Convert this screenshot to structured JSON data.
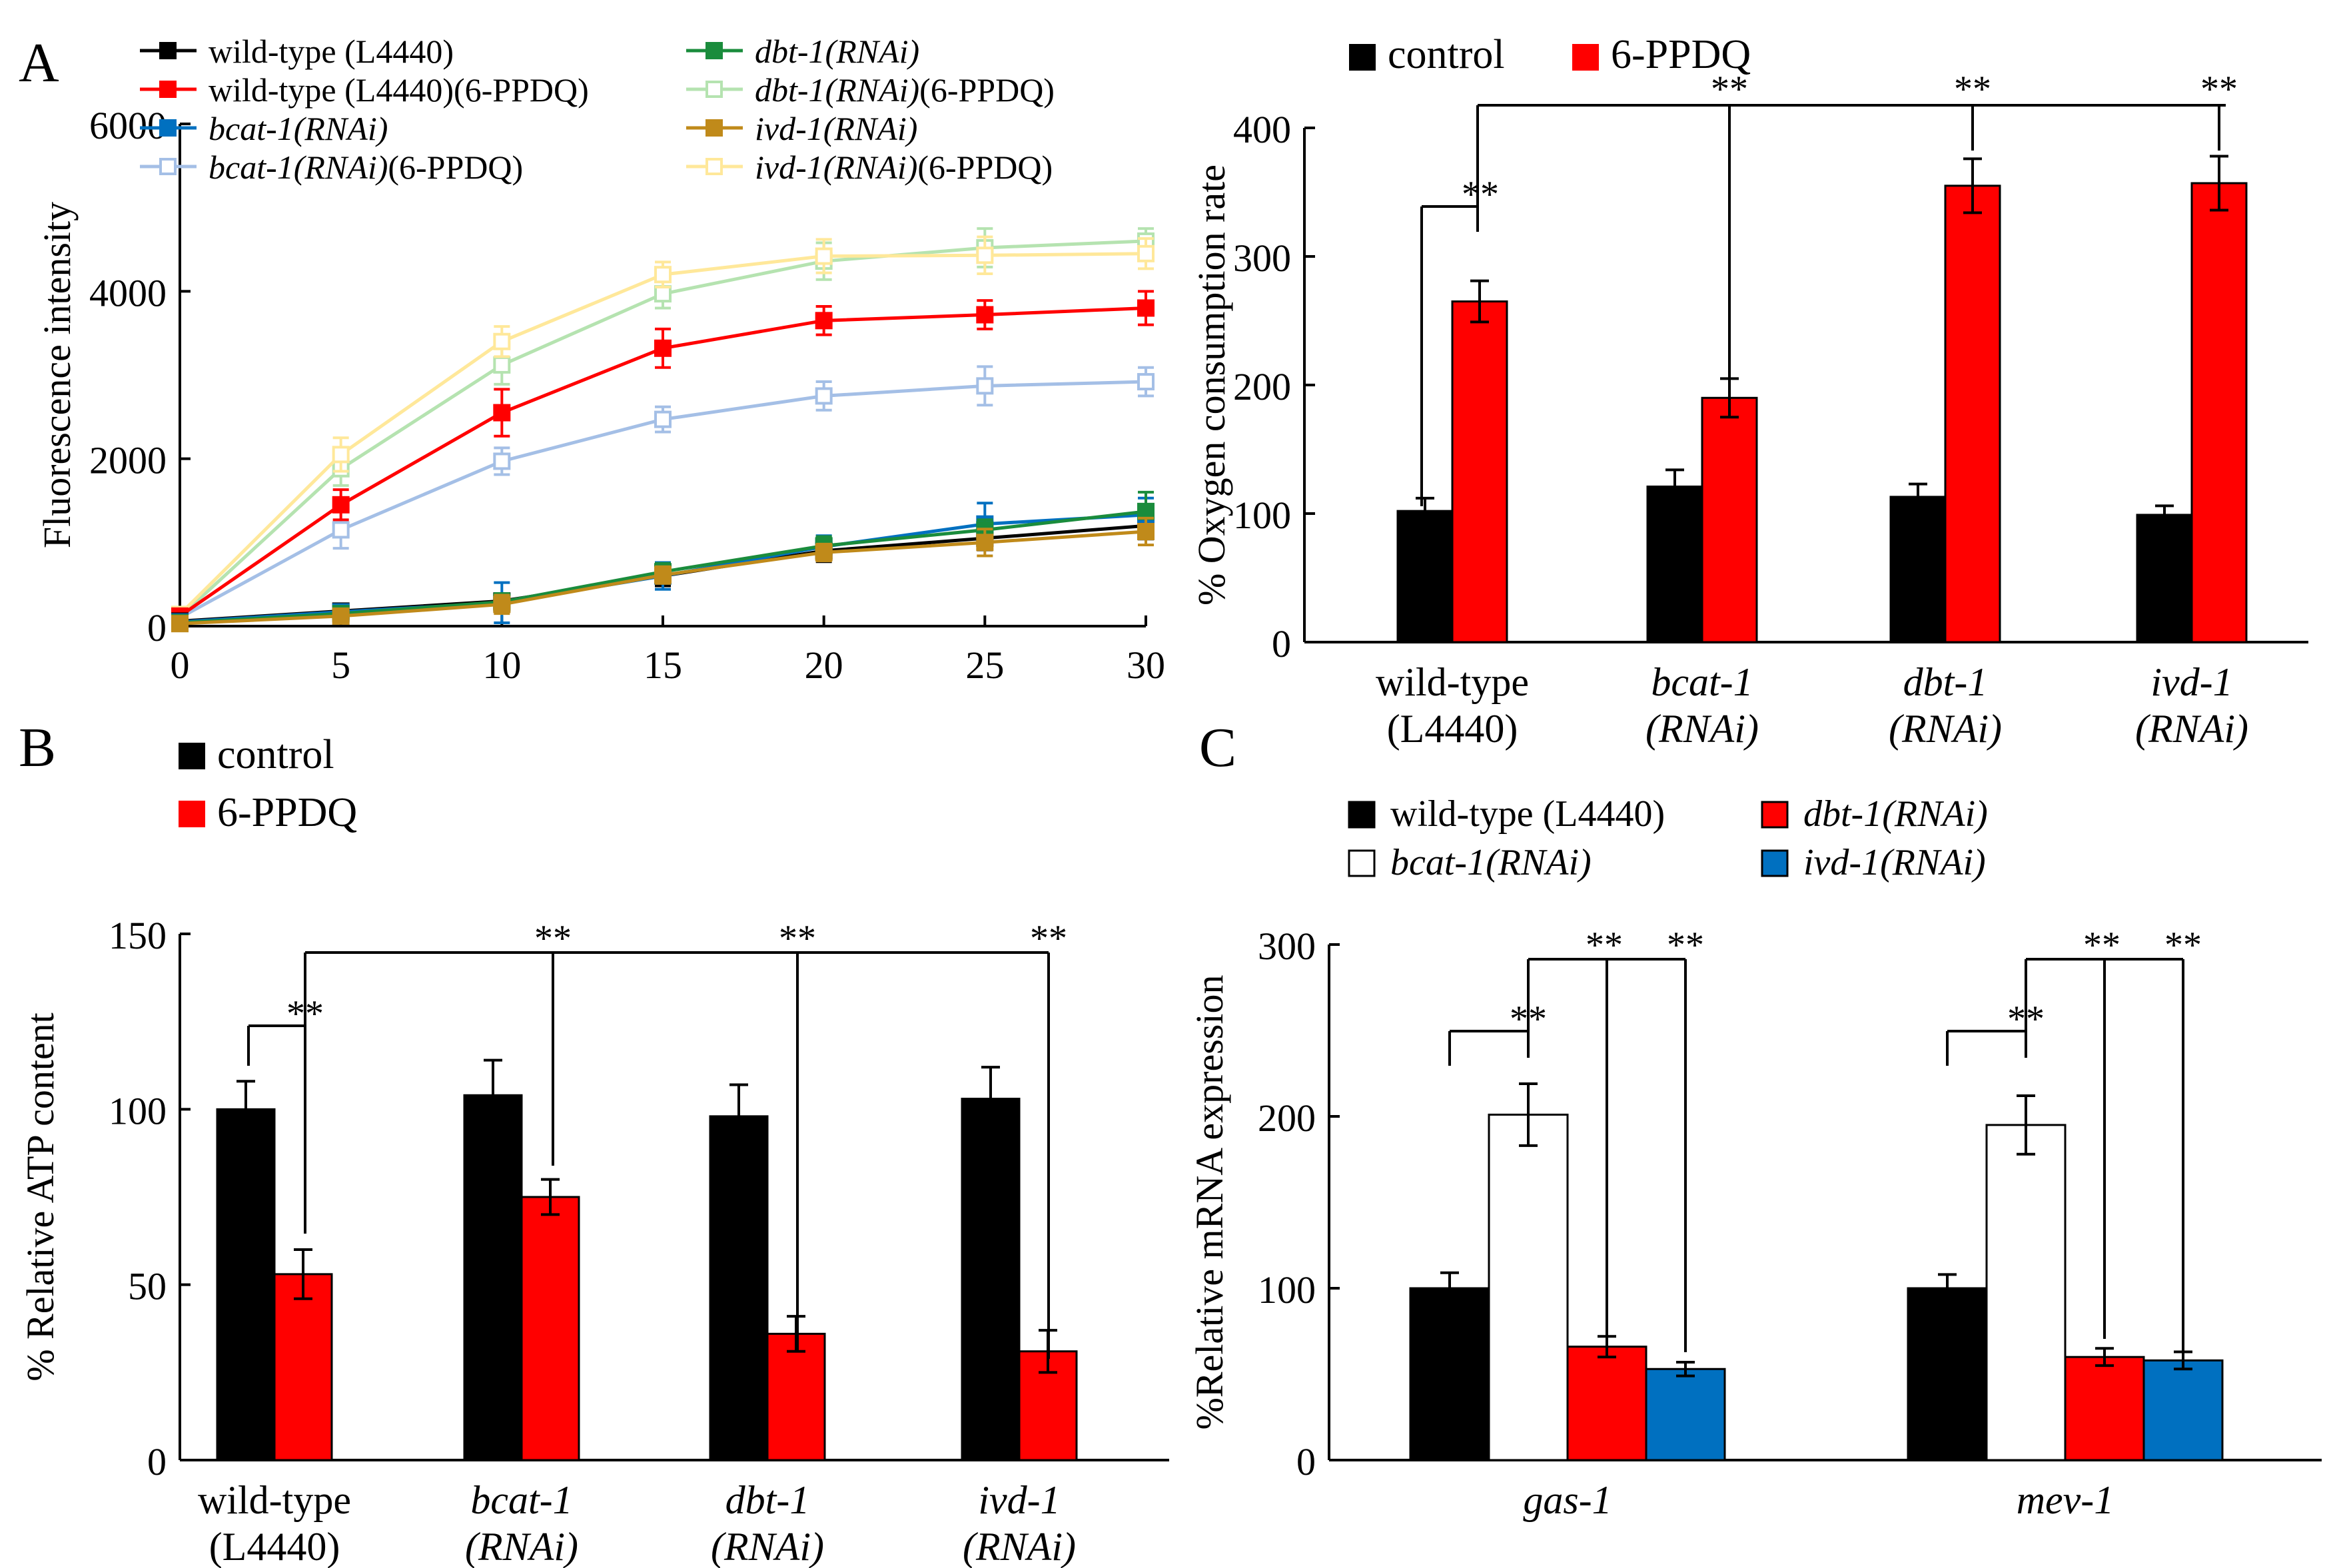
{
  "chart_data": [
    {
      "id": "A_line",
      "panel": "A",
      "type": "line",
      "title": "",
      "xlabel": "",
      "ylabel": "Fluorescence intensity",
      "xlim": [
        0,
        30
      ],
      "ylim": [
        0,
        6000
      ],
      "x": [
        0,
        5,
        10,
        15,
        20,
        25,
        30
      ],
      "xticks": [
        "0",
        "5",
        "10",
        "15",
        "20",
        "25",
        "30"
      ],
      "yticks": [
        "0",
        "2000",
        "4000",
        "6000"
      ],
      "legend_position": "top",
      "series": [
        {
          "name_parts": [
            {
              "t": "wild-type (L4440)",
              "i": false
            }
          ],
          "color": "#000000",
          "marker": "filled",
          "values": [
            60,
            180,
            300,
            600,
            900,
            1050,
            1200
          ],
          "err": [
            40,
            60,
            90,
            120,
            130,
            140,
            160
          ]
        },
        {
          "name_parts": [
            {
              "t": "wild-type (L4440)(6-PPDQ)",
              "i": false
            }
          ],
          "color": "#ff0000",
          "marker": "filled",
          "values": [
            120,
            1450,
            2550,
            3320,
            3650,
            3720,
            3800
          ],
          "err": [
            60,
            180,
            280,
            230,
            170,
            170,
            200
          ]
        },
        {
          "name_parts": [
            {
              "t": "bcat-1(RNAi)",
              "i": true
            }
          ],
          "color": "#0070c0",
          "marker": "filled",
          "values": [
            50,
            170,
            280,
            600,
            950,
            1220,
            1330
          ],
          "err": [
            40,
            60,
            240,
            160,
            130,
            250,
            200
          ]
        },
        {
          "name_parts": [
            {
              "t": "bcat-1(RNAi)",
              "i": true
            },
            {
              "t": "(6-PPDQ)",
              "i": false
            }
          ],
          "color": "#a4bfe6",
          "marker": "open",
          "values": [
            100,
            1150,
            1970,
            2470,
            2750,
            2870,
            2920
          ],
          "err": [
            60,
            220,
            160,
            150,
            170,
            230,
            170
          ]
        },
        {
          "name_parts": [
            {
              "t": "dbt-1(RNAi)",
              "i": true
            }
          ],
          "color": "#1a8c3c",
          "marker": "filled",
          "values": [
            40,
            150,
            290,
            650,
            960,
            1150,
            1370
          ],
          "err": [
            40,
            60,
            100,
            100,
            110,
            120,
            230
          ]
        },
        {
          "name_parts": [
            {
              "t": "dbt-1(RNAi)",
              "i": true
            },
            {
              "t": "(6-PPDQ)",
              "i": false
            }
          ],
          "color": "#b5e3b0",
          "marker": "open",
          "values": [
            110,
            1880,
            3120,
            3970,
            4360,
            4520,
            4600
          ],
          "err": [
            60,
            200,
            230,
            170,
            220,
            230,
            150
          ]
        },
        {
          "name_parts": [
            {
              "t": "ivd-1(RNAi)",
              "i": true
            }
          ],
          "color": "#c08a1a",
          "marker": "filled",
          "values": [
            30,
            120,
            260,
            610,
            880,
            1000,
            1130
          ],
          "err": [
            30,
            50,
            110,
            100,
            100,
            160,
            160
          ]
        },
        {
          "name_parts": [
            {
              "t": "ivd-1(RNAi)",
              "i": true
            },
            {
              "t": "(6-PPDQ)",
              "i": false
            }
          ],
          "color": "#ffe89a",
          "marker": "open",
          "values": [
            140,
            2050,
            3400,
            4200,
            4420,
            4430,
            4450
          ],
          "err": [
            60,
            200,
            180,
            150,
            200,
            220,
            180
          ]
        }
      ]
    },
    {
      "id": "A_bar",
      "panel": "",
      "type": "bar",
      "title": "",
      "ylabel": "% Oxygen consumption rate",
      "ylim": [
        0,
        400
      ],
      "yticks": [
        "0",
        "100",
        "200",
        "300",
        "400"
      ],
      "legend_position": "top",
      "groups": [
        {
          "line1": "wild-type",
          "line2": "(L4440)",
          "italic": false
        },
        {
          "line1": "bcat-1",
          "line2": "(RNAi)",
          "italic": true
        },
        {
          "line1": "dbt-1",
          "line2": "(RNAi)",
          "italic": true
        },
        {
          "line1": "ivd-1",
          "line2": "(RNAi)",
          "italic": true
        }
      ],
      "series": [
        {
          "name": "control",
          "color": "#000000",
          "values": [
            102,
            121,
            113,
            99
          ],
          "err": [
            10,
            13,
            10,
            7
          ]
        },
        {
          "name": "6-PPDQ",
          "color": "#ff0000",
          "values": [
            265,
            190,
            355,
            357
          ],
          "err": [
            16,
            15,
            21,
            21
          ]
        }
      ],
      "significance": "**"
    },
    {
      "id": "B",
      "panel": "B",
      "type": "bar",
      "title": "",
      "ylabel": "% Relative ATP content",
      "ylim": [
        0,
        150
      ],
      "yticks": [
        "0",
        "50",
        "100",
        "150"
      ],
      "legend_position": "top-left",
      "groups": [
        {
          "line1": "wild-type",
          "line2": "(L4440)",
          "italic": false
        },
        {
          "line1": "bcat-1",
          "line2": "(RNAi)",
          "italic": true
        },
        {
          "line1": "dbt-1",
          "line2": "(RNAi)",
          "italic": true
        },
        {
          "line1": "ivd-1",
          "line2": "(RNAi)",
          "italic": true
        }
      ],
      "series": [
        {
          "name": "control",
          "color": "#000000",
          "values": [
            100,
            104,
            98,
            103
          ],
          "err": [
            8,
            10,
            9,
            9
          ]
        },
        {
          "name": "6-PPDQ",
          "color": "#ff0000",
          "values": [
            53,
            75,
            36,
            31
          ],
          "err": [
            7,
            5,
            5,
            6
          ]
        }
      ],
      "significance": "**"
    },
    {
      "id": "C",
      "panel": "C",
      "type": "bar",
      "title": "",
      "ylabel": "%Relative  mRNA  expression",
      "ylim": [
        0,
        300
      ],
      "yticks": [
        "0",
        "100",
        "200",
        "300"
      ],
      "legend_position": "top",
      "groups": [
        {
          "line1": "gas-1",
          "italic": true
        },
        {
          "line1": "mev-1",
          "italic": true
        }
      ],
      "series": [
        {
          "name_parts": [
            {
              "t": "wild-type (L4440)",
              "i": false
            }
          ],
          "color": "#000000",
          "values": [
            100,
            100
          ],
          "err": [
            9,
            8
          ]
        },
        {
          "name_parts": [
            {
              "t": "bcat-1(RNAi)",
              "i": true
            }
          ],
          "color": "#ffffff",
          "values": [
            201,
            195
          ],
          "err": [
            18,
            17
          ]
        },
        {
          "name_parts": [
            {
              "t": "dbt-1(RNAi)",
              "i": true
            }
          ],
          "color": "#ff0000",
          "values": [
            66,
            60
          ],
          "err": [
            6,
            5
          ]
        },
        {
          "name_parts": [
            {
              "t": "ivd-1(RNAi)",
              "i": true
            }
          ],
          "color": "#0070c0",
          "values": [
            53,
            58
          ],
          "err": [
            4,
            5
          ]
        }
      ],
      "significance": "**"
    }
  ]
}
